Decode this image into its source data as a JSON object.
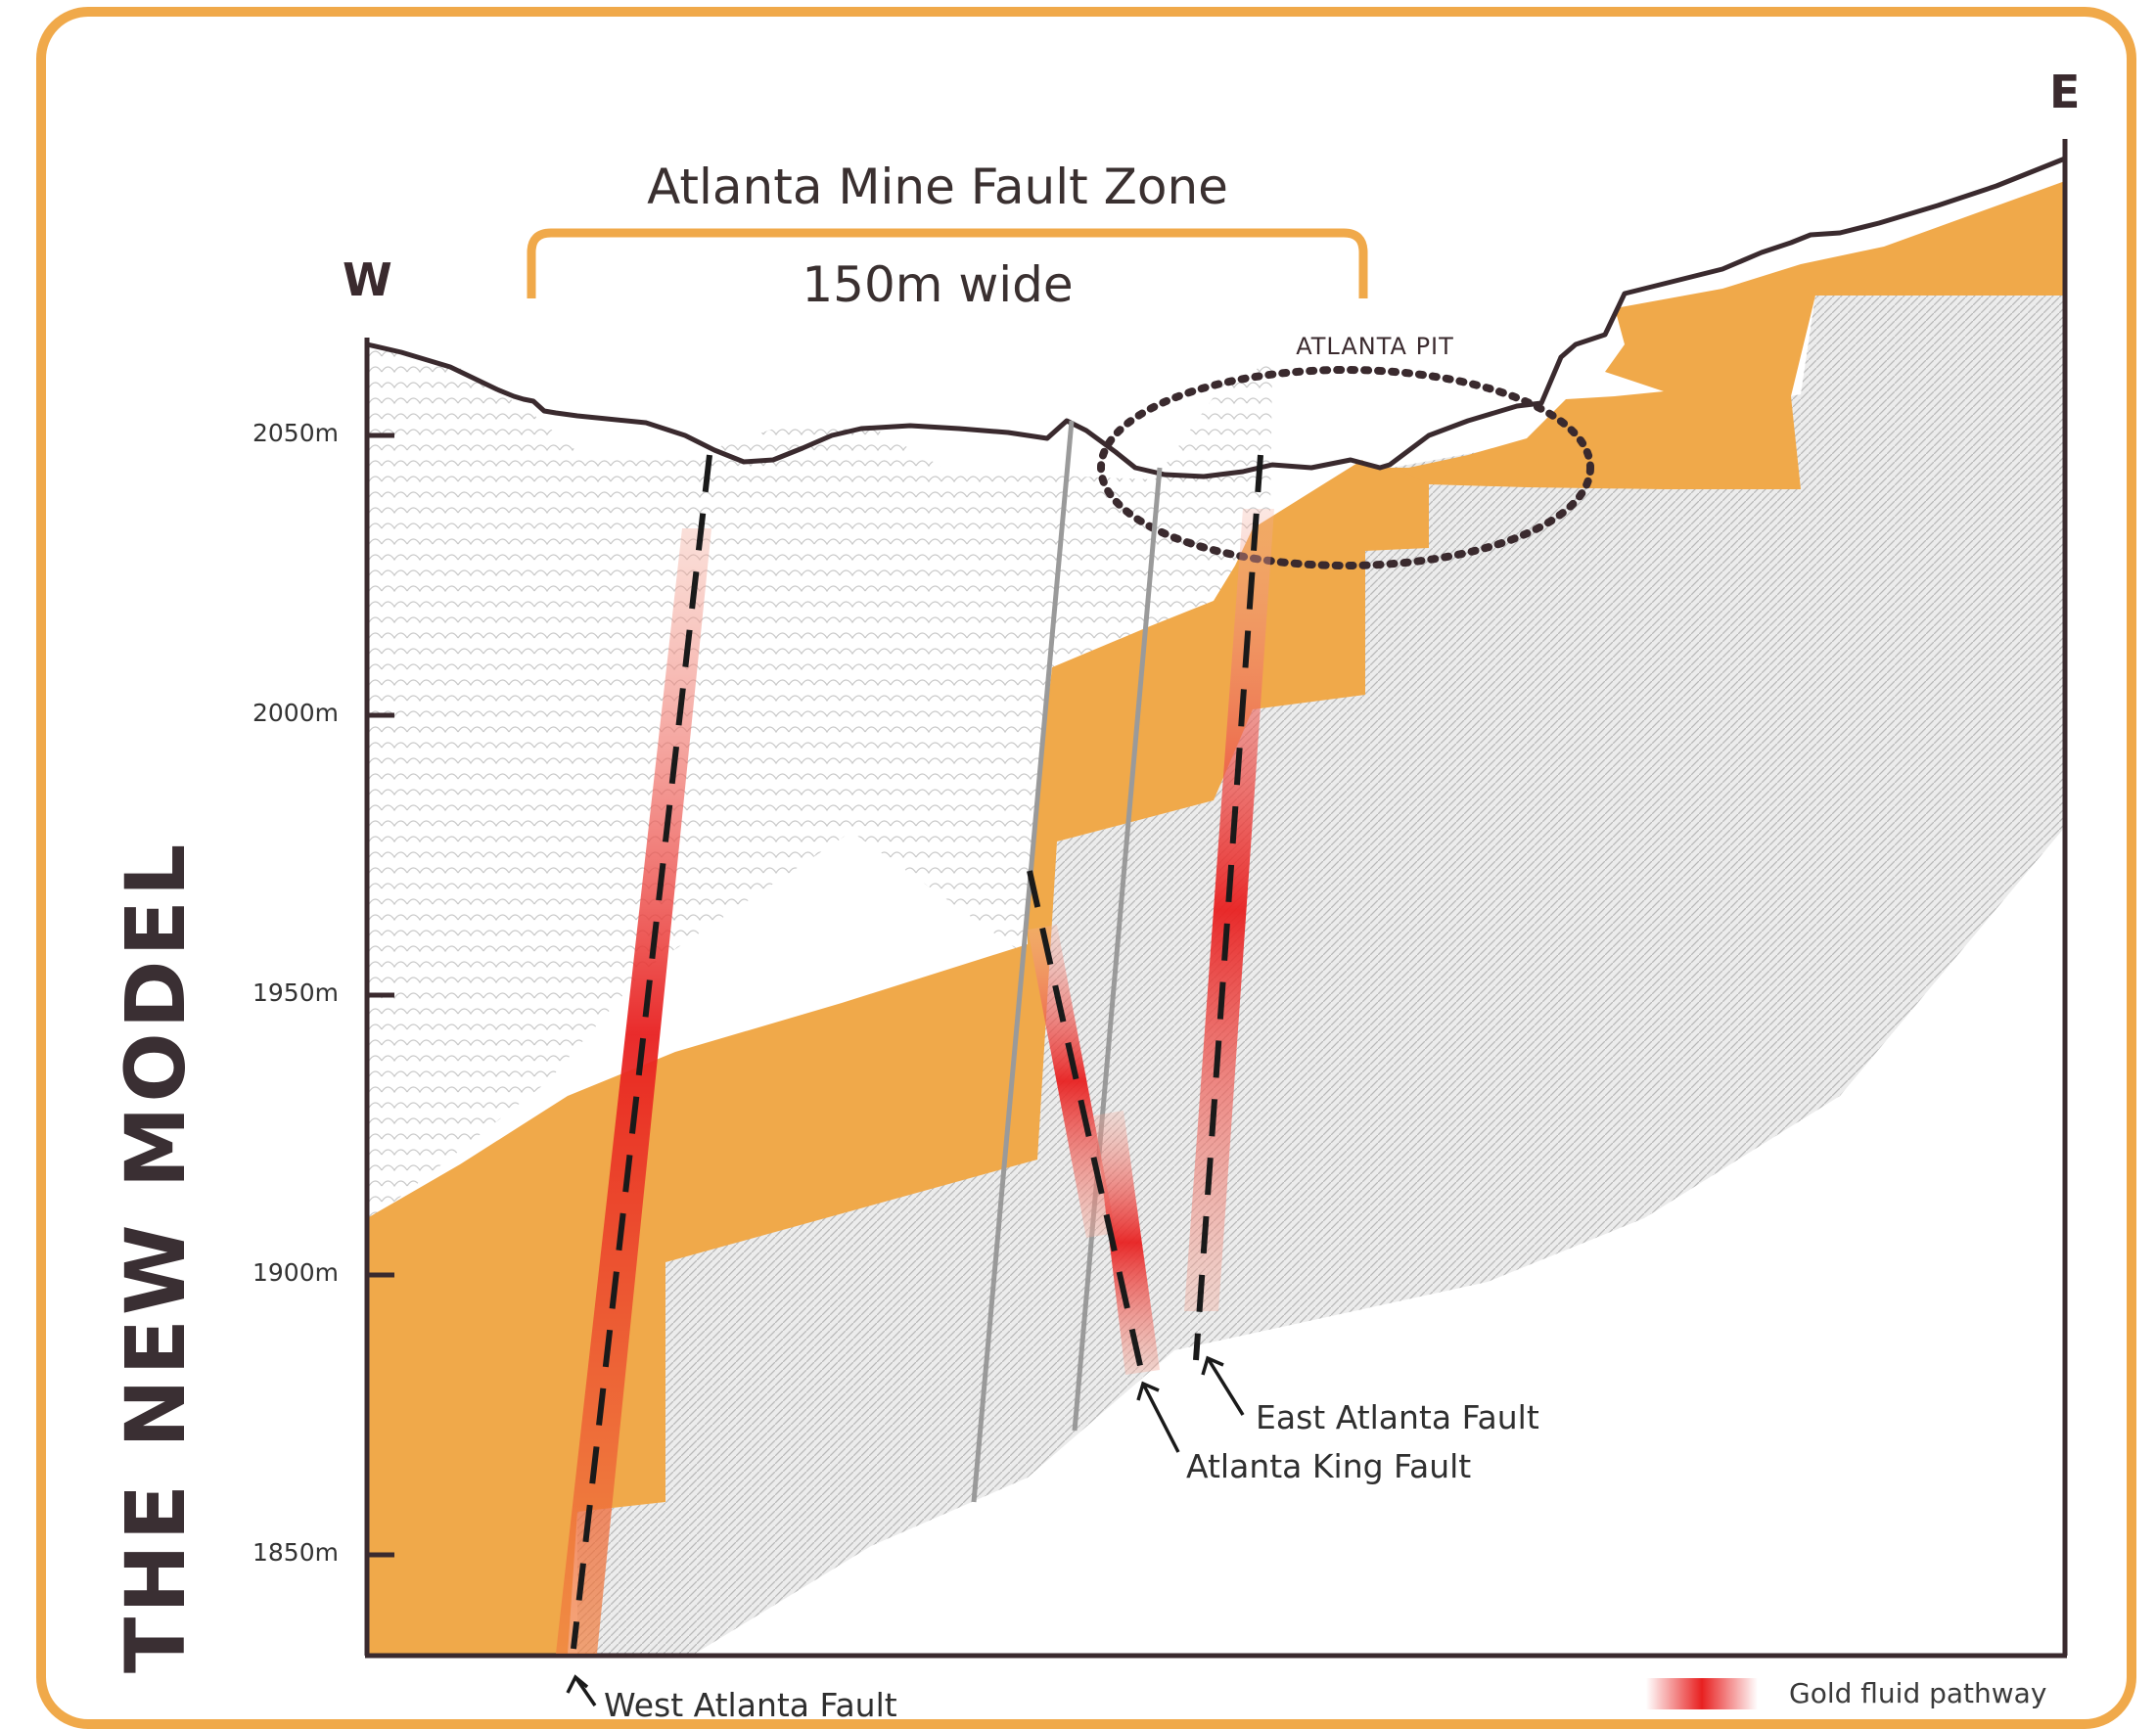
{
  "side_title": "THE NEW MODEL",
  "direction": {
    "west": "W",
    "east": "E"
  },
  "fault_zone": {
    "title": "Atlanta Mine Fault Zone",
    "width_label": "150m wide"
  },
  "pit_label": "ATLANTA PIT",
  "elevation_ticks": [
    "2050m",
    "2000m",
    "1950m",
    "1900m",
    "1850m"
  ],
  "faults": {
    "west": "West Atlanta Fault",
    "east": "East Atlanta Fault",
    "king": "Atlanta King Fault"
  },
  "legend": {
    "gold_fluid": "Gold fluid pathway"
  },
  "colors": {
    "frame": "#F0A94A",
    "orange_unit": "#F0A94A",
    "gold_fluid": "#E82020",
    "surface": "#3a2a2e",
    "fault_line": "#9a9a9a"
  }
}
